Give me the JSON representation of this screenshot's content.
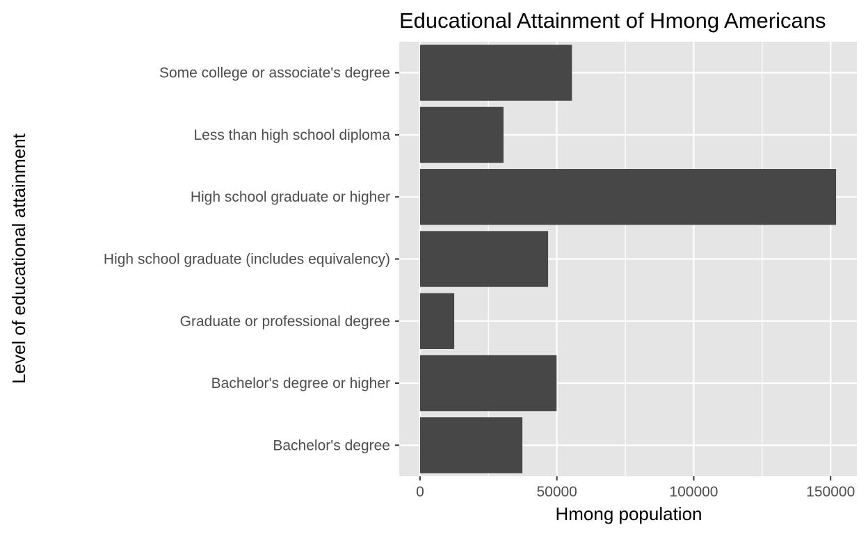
{
  "chart_data": {
    "type": "bar",
    "orientation": "horizontal",
    "title": "Educational Attainment of Hmong Americans",
    "xlabel": "Hmong population",
    "ylabel": "Level of educational attainment",
    "categories": [
      "Some college or associate's degree",
      "Less than high school diploma",
      "High school graduate or higher",
      "High school graduate (includes equivalency)",
      "Graduate or professional degree",
      "Bachelor's degree or higher",
      "Bachelor's degree"
    ],
    "values": [
      55500,
      30500,
      152000,
      46800,
      12500,
      49900,
      37400
    ],
    "xlim": [
      -7600,
      159600
    ],
    "xticks": [
      0,
      50000,
      100000,
      150000
    ],
    "xtick_labels": [
      "0",
      "50000",
      "100000",
      "150000"
    ],
    "grid": true,
    "colors": {
      "bar": "#474747",
      "panel": "#e5e5e5",
      "grid": "#ffffff"
    }
  }
}
